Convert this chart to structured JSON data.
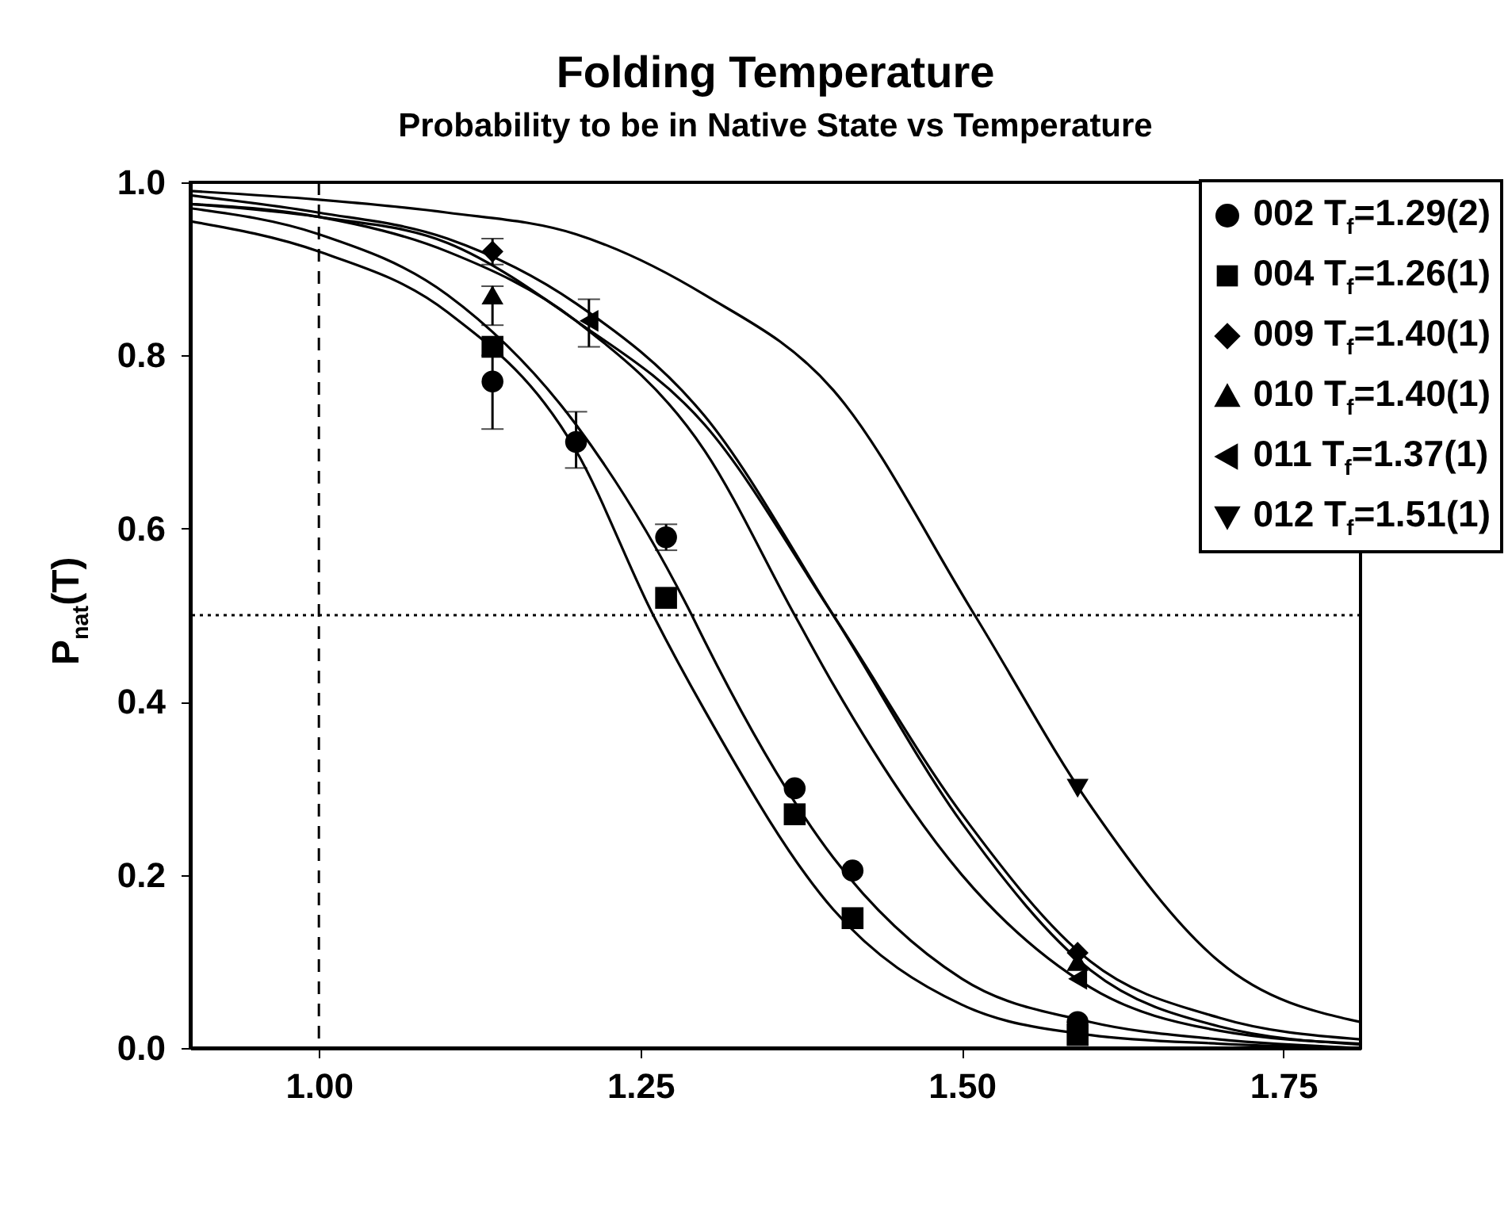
{
  "chart_data": {
    "type": "scatter",
    "title": "Folding Temperature",
    "subtitle": "Probability to be in Native State vs Temperature",
    "ylabel": "P$_{nat}$(T)",
    "xlim": [
      0.9,
      1.81
    ],
    "ylim": [
      0,
      1
    ],
    "xticks": [
      {
        "value": 1,
        "label": "1.00"
      },
      {
        "value": 1.25,
        "label": "1.25"
      },
      {
        "value": 1.5,
        "label": "1.50"
      },
      {
        "value": 1.75,
        "label": "1.75"
      }
    ],
    "yticks": [
      {
        "value": 0,
        "label": "0.0"
      },
      {
        "value": 0.2,
        "label": "0.2"
      },
      {
        "value": 0.4,
        "label": "0.4"
      },
      {
        "value": 0.6,
        "label": "0.6"
      },
      {
        "value": 0.8,
        "label": "0.8"
      },
      {
        "value": 1,
        "label": "1.0"
      }
    ],
    "grid": false,
    "legend": "top right",
    "ref_lines": [
      {
        "axis": "y",
        "value": 0.5,
        "line_style": "dotted"
      },
      {
        "axis": "x",
        "value": 1,
        "line_style": "dashed"
      }
    ],
    "series": [
      {
        "type": "line",
        "color": "#000000",
        "marker": "none",
        "x": [
          0.9,
          1.0,
          1.1,
          1.2,
          1.26,
          1.3,
          1.4,
          1.5,
          1.6,
          1.7,
          1.81
        ],
        "values": [
          0.955,
          0.92,
          0.85,
          0.69,
          0.5,
          0.39,
          0.16,
          0.05,
          0.015,
          0.005,
          0
        ]
      },
      {
        "type": "line",
        "color": "#000000",
        "marker": "none",
        "x": [
          0.9,
          1.0,
          1.1,
          1.2,
          1.29,
          1.3,
          1.4,
          1.5,
          1.6,
          1.7,
          1.81
        ],
        "values": [
          0.97,
          0.94,
          0.87,
          0.72,
          0.5,
          0.47,
          0.22,
          0.08,
          0.03,
          0.01,
          0
        ]
      },
      {
        "type": "line",
        "color": "#000000",
        "marker": "none",
        "x": [
          0.9,
          1.0,
          1.1,
          1.2,
          1.3,
          1.37,
          1.4,
          1.5,
          1.6,
          1.7,
          1.81
        ],
        "values": [
          0.975,
          0.96,
          0.92,
          0.84,
          0.69,
          0.5,
          0.42,
          0.2,
          0.07,
          0.02,
          0.005
        ]
      },
      {
        "type": "line",
        "color": "#000000",
        "marker": "none",
        "x": [
          0.9,
          1.0,
          1.1,
          1.2,
          1.3,
          1.4,
          1.5,
          1.6,
          1.7,
          1.81
        ],
        "values": [
          0.975,
          0.96,
          0.93,
          0.84,
          0.72,
          0.5,
          0.27,
          0.1,
          0.035,
          0.01
        ]
      },
      {
        "type": "line",
        "color": "#000000",
        "marker": "none",
        "x": [
          0.9,
          1.0,
          1.1,
          1.2,
          1.3,
          1.4,
          1.5,
          1.6,
          1.7,
          1.81
        ],
        "values": [
          0.985,
          0.965,
          0.935,
          0.86,
          0.73,
          0.5,
          0.26,
          0.09,
          0.025,
          0.004
        ]
      },
      {
        "type": "line",
        "color": "#000000",
        "marker": "none",
        "x": [
          0.9,
          1.0,
          1.1,
          1.2,
          1.3,
          1.4,
          1.51,
          1.6,
          1.7,
          1.81
        ],
        "values": [
          0.99,
          0.98,
          0.965,
          0.94,
          0.87,
          0.76,
          0.5,
          0.28,
          0.1,
          0.03
        ]
      },
      {
        "type": "scatter",
        "name": "002 T$_{f}$=1.29(2)",
        "color": "#000000",
        "marker": "circle",
        "x": [
          1.135,
          1.2,
          1.27,
          1.37,
          1.415,
          1.59
        ],
        "values": [
          0.77,
          0.7,
          0.59,
          0.3,
          0.205,
          0.03
        ],
        "errors": [
          [
            0.715,
            0.8
          ],
          [
            0.67,
            0.735
          ],
          0.015,
          null,
          null,
          null
        ]
      },
      {
        "type": "scatter",
        "name": "004 T$_{f}$=1.26(1)",
        "color": "#000000",
        "marker": "square",
        "x": [
          1.135,
          1.27,
          1.37,
          1.415,
          1.59
        ],
        "values": [
          0.81,
          0.52,
          0.27,
          0.15,
          0.015
        ]
      },
      {
        "type": "scatter",
        "name": "009 T$_{f}$=1.40(1)",
        "color": "#000000",
        "marker": "diamond",
        "x": [
          1.135,
          1.59
        ],
        "values": [
          0.92,
          0.11
        ],
        "errors": [
          0.015,
          null
        ]
      },
      {
        "type": "scatter",
        "name": "010 T$_{f}$=1.40(1)",
        "color": "#000000",
        "marker": "triangle",
        "x": [
          1.135,
          1.59
        ],
        "values": [
          0.87,
          0.1
        ],
        "errors": [
          [
            0.835,
            0.88
          ],
          null
        ]
      },
      {
        "type": "scatter",
        "name": "011 T$_{f}$=1.37(1)",
        "color": "#000000",
        "marker": "triangle-left",
        "x": [
          1.21,
          1.59
        ],
        "values": [
          0.84,
          0.08
        ],
        "errors": [
          [
            0.81,
            0.865
          ],
          null
        ]
      },
      {
        "type": "scatter",
        "name": "012 T$_{f}$=1.51(1)",
        "color": "#000000",
        "marker": "triangle-down",
        "x": [
          1.59
        ],
        "values": [
          0.3
        ]
      }
    ]
  }
}
